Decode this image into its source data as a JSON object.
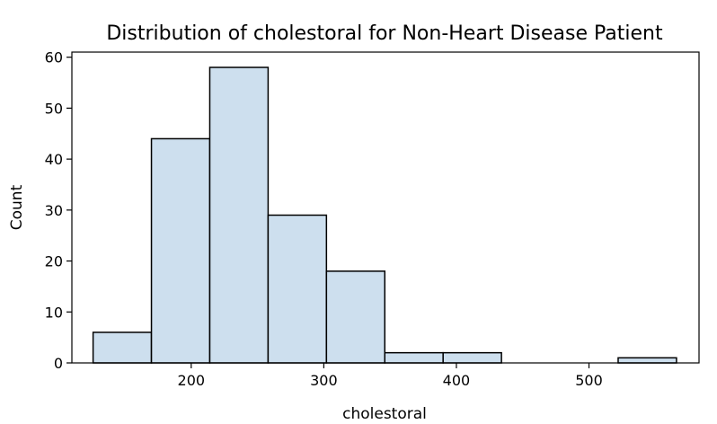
{
  "chart_data": {
    "type": "bar",
    "title": "Distribution of cholestoral for Non-Heart Disease Patient",
    "xlabel": "cholestoral",
    "ylabel": "Count",
    "bin_edges": [
      126,
      170,
      214,
      258,
      302,
      346,
      390,
      434,
      478,
      522,
      566
    ],
    "values": [
      6,
      44,
      58,
      29,
      18,
      2,
      2,
      0,
      0,
      1
    ],
    "xlim": [
      110,
      583
    ],
    "ylim": [
      0,
      61
    ],
    "xticks": [
      200,
      300,
      400,
      500
    ],
    "yticks": [
      0,
      10,
      20,
      30,
      40,
      50,
      60
    ],
    "grid": false,
    "bar_color": "#cddfee",
    "edge_color": "#000000"
  }
}
